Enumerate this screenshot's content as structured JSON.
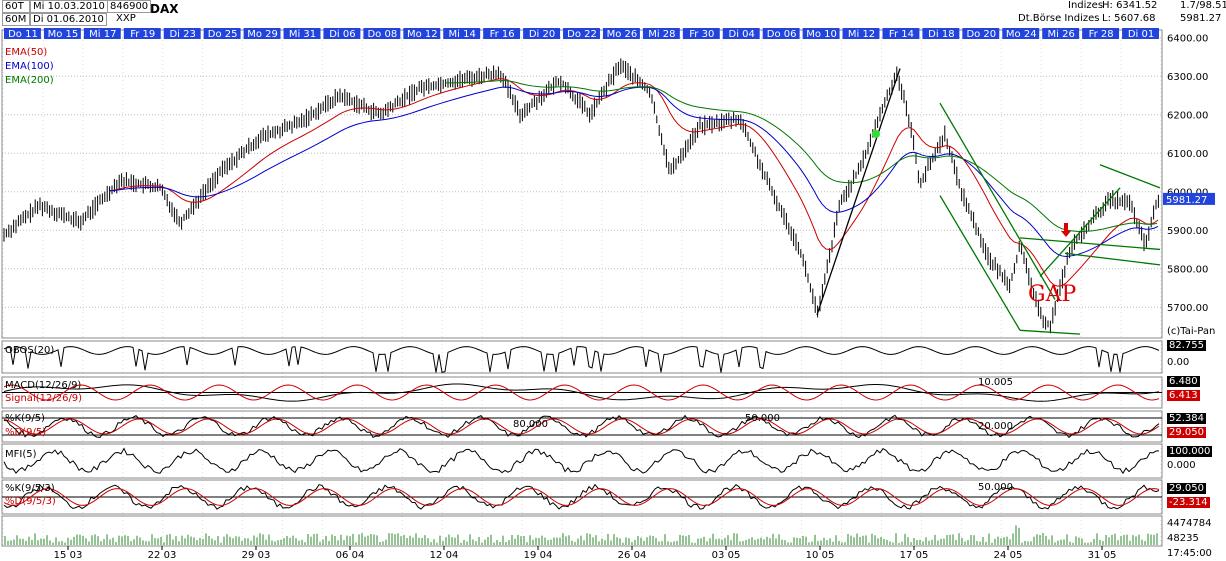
{
  "header": {
    "period1": "60T",
    "range1": "Mi 10.03.2010",
    "code": "846900",
    "name": "DAX",
    "period2": "60M",
    "range2": "Di 01.06.2010",
    "exchange": "XXP",
    "market": "Indizes",
    "provider": "Dt.Börse Indizes",
    "high": "H: 6341.52",
    "change": "1.7/98.51",
    "low": "L: 5607.68",
    "last": "5981.27"
  },
  "chart_data": {
    "type": "line",
    "top_ticks": [
      "Do 11",
      "Mo 15",
      "Mi 17",
      "Fr 19",
      "Di 23",
      "Do 25",
      "Mo 29",
      "Mi 31",
      "Di 06",
      "Do 08",
      "Mo 12",
      "Mi 14",
      "Fr 16",
      "Di 20",
      "Do 22",
      "Mo 26",
      "Mi 28",
      "Fr 30",
      "Di 04",
      "Do 06",
      "Mo 10",
      "Mi 12",
      "Fr 14",
      "Di 18",
      "Do 20",
      "Mo 24",
      "Mi 26",
      "Fr 28",
      "Di 01"
    ],
    "bottom_ticks": [
      "15 03",
      "22 03",
      "29 03",
      "06 04",
      "12 04",
      "19 04",
      "26 04",
      "03 05",
      "10 05",
      "17 05",
      "24 05",
      "31 05"
    ],
    "price_axis": [
      "6400.00",
      "6300.00",
      "6200.00",
      "6100.00",
      "6000.00",
      "5900.00",
      "5800.00",
      "5700.00"
    ],
    "ylim": [
      5620,
      6420
    ],
    "last_value": "5981.27",
    "copyright": "(c)Tai-Pan",
    "annotation": "GAP",
    "series": [
      {
        "name": "EMA(50)",
        "color": "#cc0000"
      },
      {
        "name": "EMA(100)",
        "color": "#0000cc"
      },
      {
        "name": "EMA(200)",
        "color": "#007700"
      }
    ],
    "indicators": [
      {
        "name": "OBOS(20)",
        "value1": "82.755",
        "value2": "0.00"
      },
      {
        "name": "MACD(12/26/9)",
        "name2": "Signal(12/26/9)",
        "value1": "6.480",
        "value2": "6.413",
        "level": "10.005"
      },
      {
        "name": "%K(9/5)",
        "name2": "%D(9/5)",
        "value1": "52.384",
        "value2": "29.050",
        "levels": [
          "80.000",
          "50.000",
          "20.000"
        ]
      },
      {
        "name": "MFI(5)",
        "value1": "100.000",
        "value2": "0.000"
      },
      {
        "name": "%K(9/5/3)",
        "name2": "%D(9/5/3)",
        "value1": "29.050",
        "value2": "-23.314",
        "level": "50.000"
      }
    ],
    "volume": {
      "value1": "4474784",
      "value2": "48235"
    },
    "time": "17:45:00"
  }
}
